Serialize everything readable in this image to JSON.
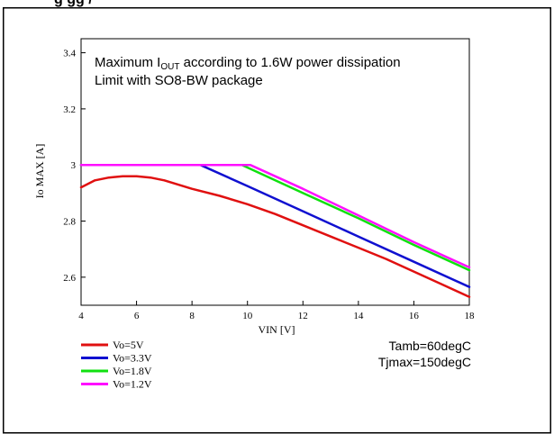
{
  "header_fragment": "g                                    gg /",
  "chart_data": {
    "type": "line",
    "title_line1_prefix": "Maximum I",
    "title_line1_sub": "OUT",
    "title_line1_suffix": " according to 1.6W power dissipation",
    "title_line2": "Limit with SO8-BW package",
    "xlabel": "VIN [V]",
    "ylabel": "Io MAX [A]",
    "xlim": [
      4,
      18
    ],
    "ylim": [
      2.5,
      3.45
    ],
    "xticks": [
      4,
      6,
      8,
      10,
      12,
      14,
      16,
      18
    ],
    "yticks": [
      2.6,
      2.8,
      3,
      3.2,
      3.4
    ],
    "ytick_labels": [
      "2.6",
      "2.8",
      "3",
      "3.2",
      "3.4"
    ],
    "grid": false,
    "legend_position": "bottom-left",
    "notes": [
      "Tamb=60degC",
      "Tjmax=150degC"
    ],
    "series": [
      {
        "name": "Vo=5V",
        "color": "#e01010",
        "x": [
          4,
          4.5,
          5,
          5.5,
          6,
          6.5,
          7,
          8,
          9,
          10,
          11,
          12,
          13,
          14,
          15,
          16,
          17,
          18
        ],
        "y": [
          2.92,
          2.945,
          2.955,
          2.96,
          2.96,
          2.955,
          2.945,
          2.915,
          2.89,
          2.86,
          2.825,
          2.785,
          2.745,
          2.705,
          2.665,
          2.62,
          2.575,
          2.53
        ]
      },
      {
        "name": "Vo=3.3V",
        "color": "#1010d0",
        "x": [
          4,
          8.3,
          10,
          12,
          14,
          16,
          18
        ],
        "y": [
          3,
          3,
          2.925,
          2.835,
          2.745,
          2.655,
          2.565
        ]
      },
      {
        "name": "Vo=1.8V",
        "color": "#10e010",
        "x": [
          4,
          9.8,
          12,
          14,
          16,
          18
        ],
        "y": [
          3,
          3,
          2.9,
          2.81,
          2.715,
          2.625
        ]
      },
      {
        "name": "Vo=1.2V",
        "color": "#ff10ff",
        "x": [
          4,
          10.1,
          12,
          14,
          16,
          18
        ],
        "y": [
          3,
          3,
          2.915,
          2.82,
          2.725,
          2.635
        ]
      }
    ]
  }
}
